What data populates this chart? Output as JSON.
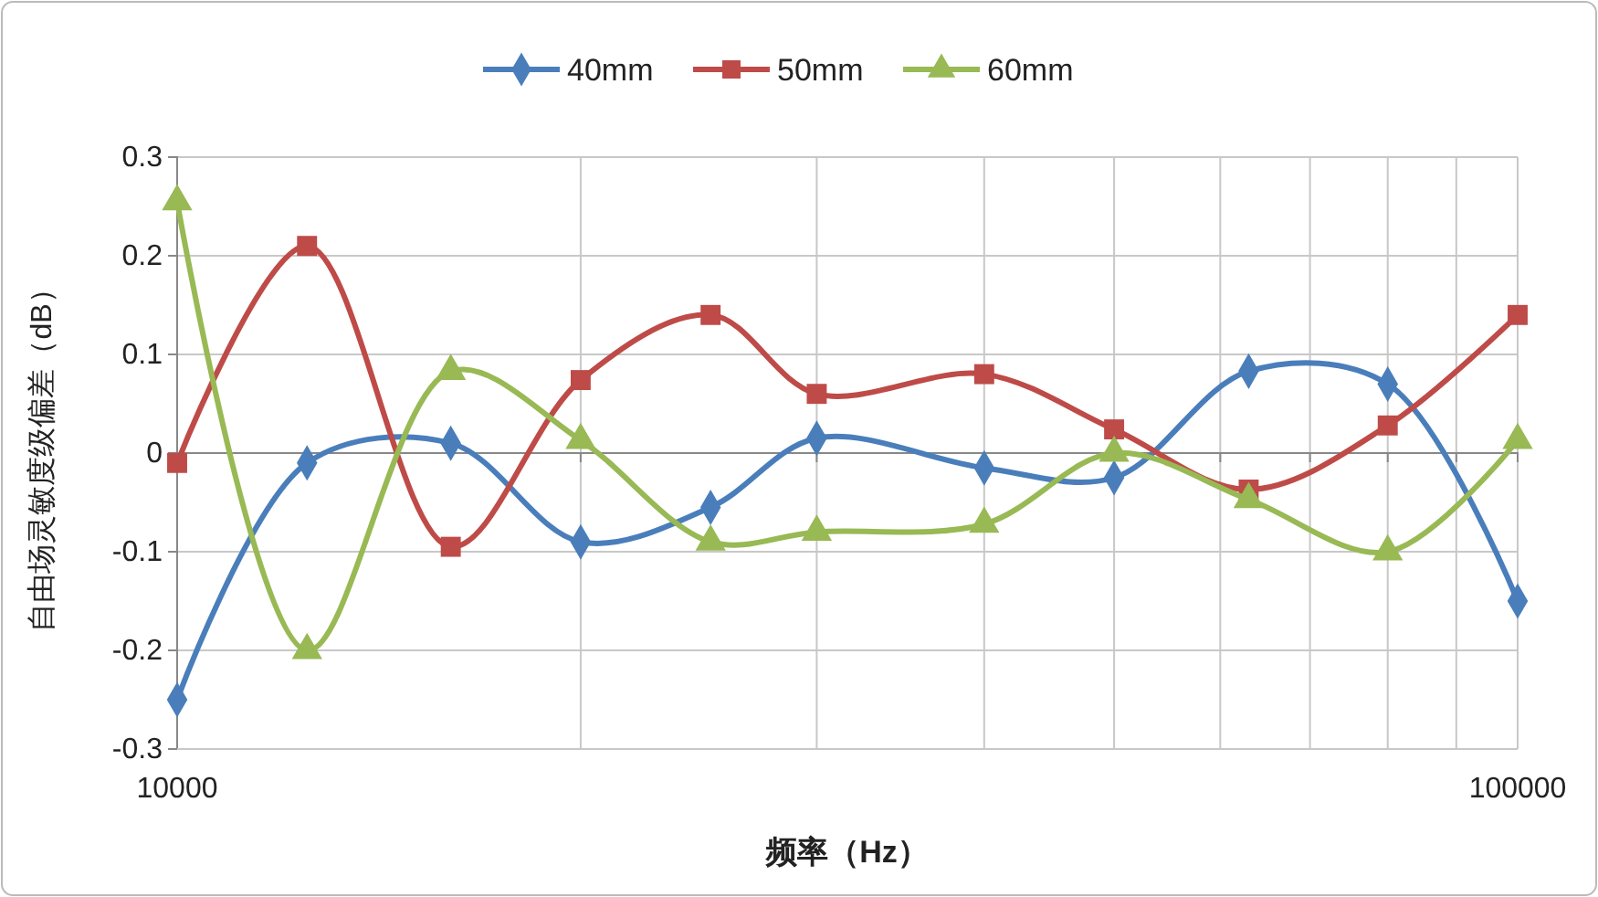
{
  "chart_data": {
    "type": "line",
    "xlabel": "频率（Hz）",
    "ylabel": "自由场灵敏度级偏差（dB）",
    "x": [
      10000,
      12500,
      16000,
      20000,
      25000,
      30000,
      40000,
      50000,
      63000,
      80000,
      100000
    ],
    "log": "x",
    "xlim": [
      10000,
      100000
    ],
    "xticks": [
      10000,
      {
        "value": 20000,
        "label": null
      },
      {
        "value": 30000,
        "label": null
      },
      {
        "value": 40000,
        "label": null
      },
      {
        "value": 50000,
        "label": null
      },
      {
        "value": 60000,
        "label": null
      },
      {
        "value": 70000,
        "label": null
      },
      {
        "value": 80000,
        "label": null
      },
      {
        "value": 90000,
        "label": null
      },
      100000
    ],
    "ylim": [
      -0.3,
      0.3
    ],
    "yticks": [
      -0.3,
      -0.2,
      -0.1,
      0,
      0.1,
      0.2,
      0.3
    ],
    "grid": true,
    "legend": "top",
    "series": [
      {
        "name": "40mm",
        "color": "#4a7ebb",
        "marker": "diamond",
        "values": [
          -0.25,
          -0.01,
          0.01,
          -0.09,
          -0.055,
          0.015,
          -0.015,
          -0.025,
          0.083,
          0.07,
          -0.15
        ]
      },
      {
        "name": "50mm",
        "color": "#be4b48",
        "marker": "square",
        "values": [
          -0.01,
          0.21,
          -0.095,
          0.074,
          0.14,
          0.06,
          0.08,
          0.024,
          -0.037,
          0.028,
          0.14
        ]
      },
      {
        "name": "60mm",
        "color": "#98b954",
        "marker": "triangle",
        "values": [
          0.255,
          -0.2,
          0.083,
          0.013,
          -0.09,
          -0.08,
          -0.072,
          0,
          -0.047,
          -0.1,
          0.013
        ]
      }
    ]
  }
}
